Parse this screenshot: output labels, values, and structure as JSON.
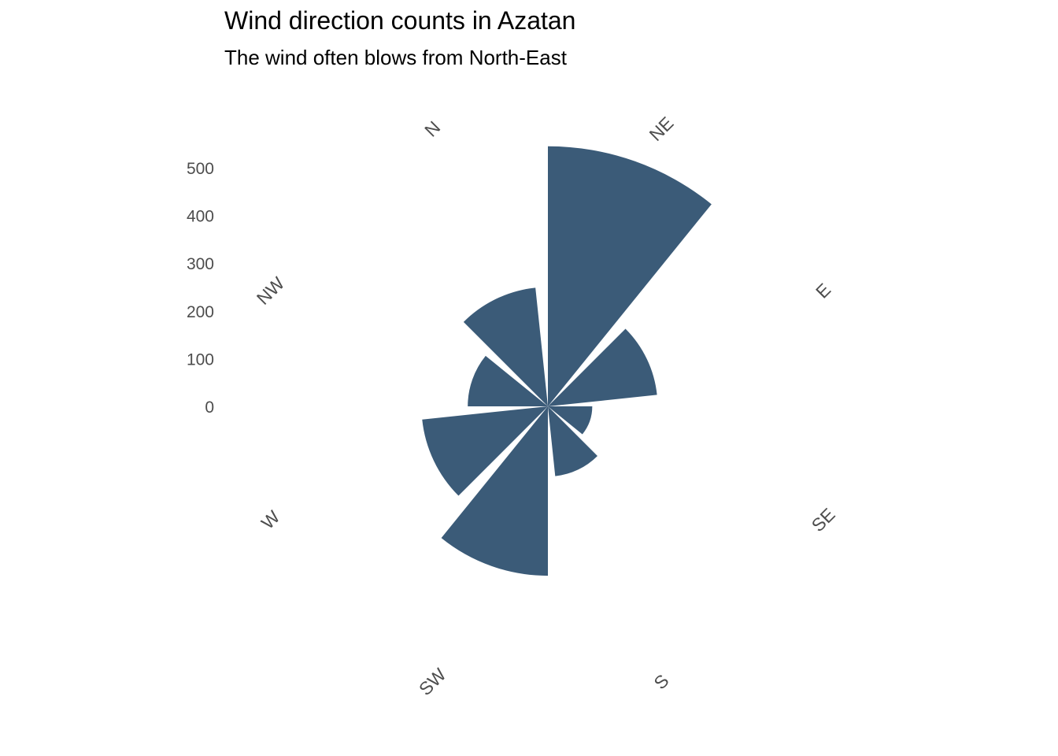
{
  "chart_data": {
    "type": "bar",
    "coordinate_system": "polar",
    "title": "Wind direction counts in Azatan",
    "subtitle": "The wind often blows from North-East",
    "categories": [
      "NE",
      "E",
      "SE",
      "S",
      "SW",
      "W",
      "NW",
      "N"
    ],
    "values": [
      545,
      230,
      93,
      147,
      355,
      265,
      168,
      250
    ],
    "radial_ticks": [
      "0",
      "100",
      "200",
      "300",
      "400",
      "500"
    ],
    "radial_tick_values": [
      0,
      100,
      200,
      300,
      400,
      500
    ],
    "angular_labels": [
      "N",
      "NE",
      "E",
      "SE",
      "S",
      "SW",
      "W",
      "NW"
    ],
    "color": "#3b5b78",
    "grid": false,
    "legend": "none"
  }
}
